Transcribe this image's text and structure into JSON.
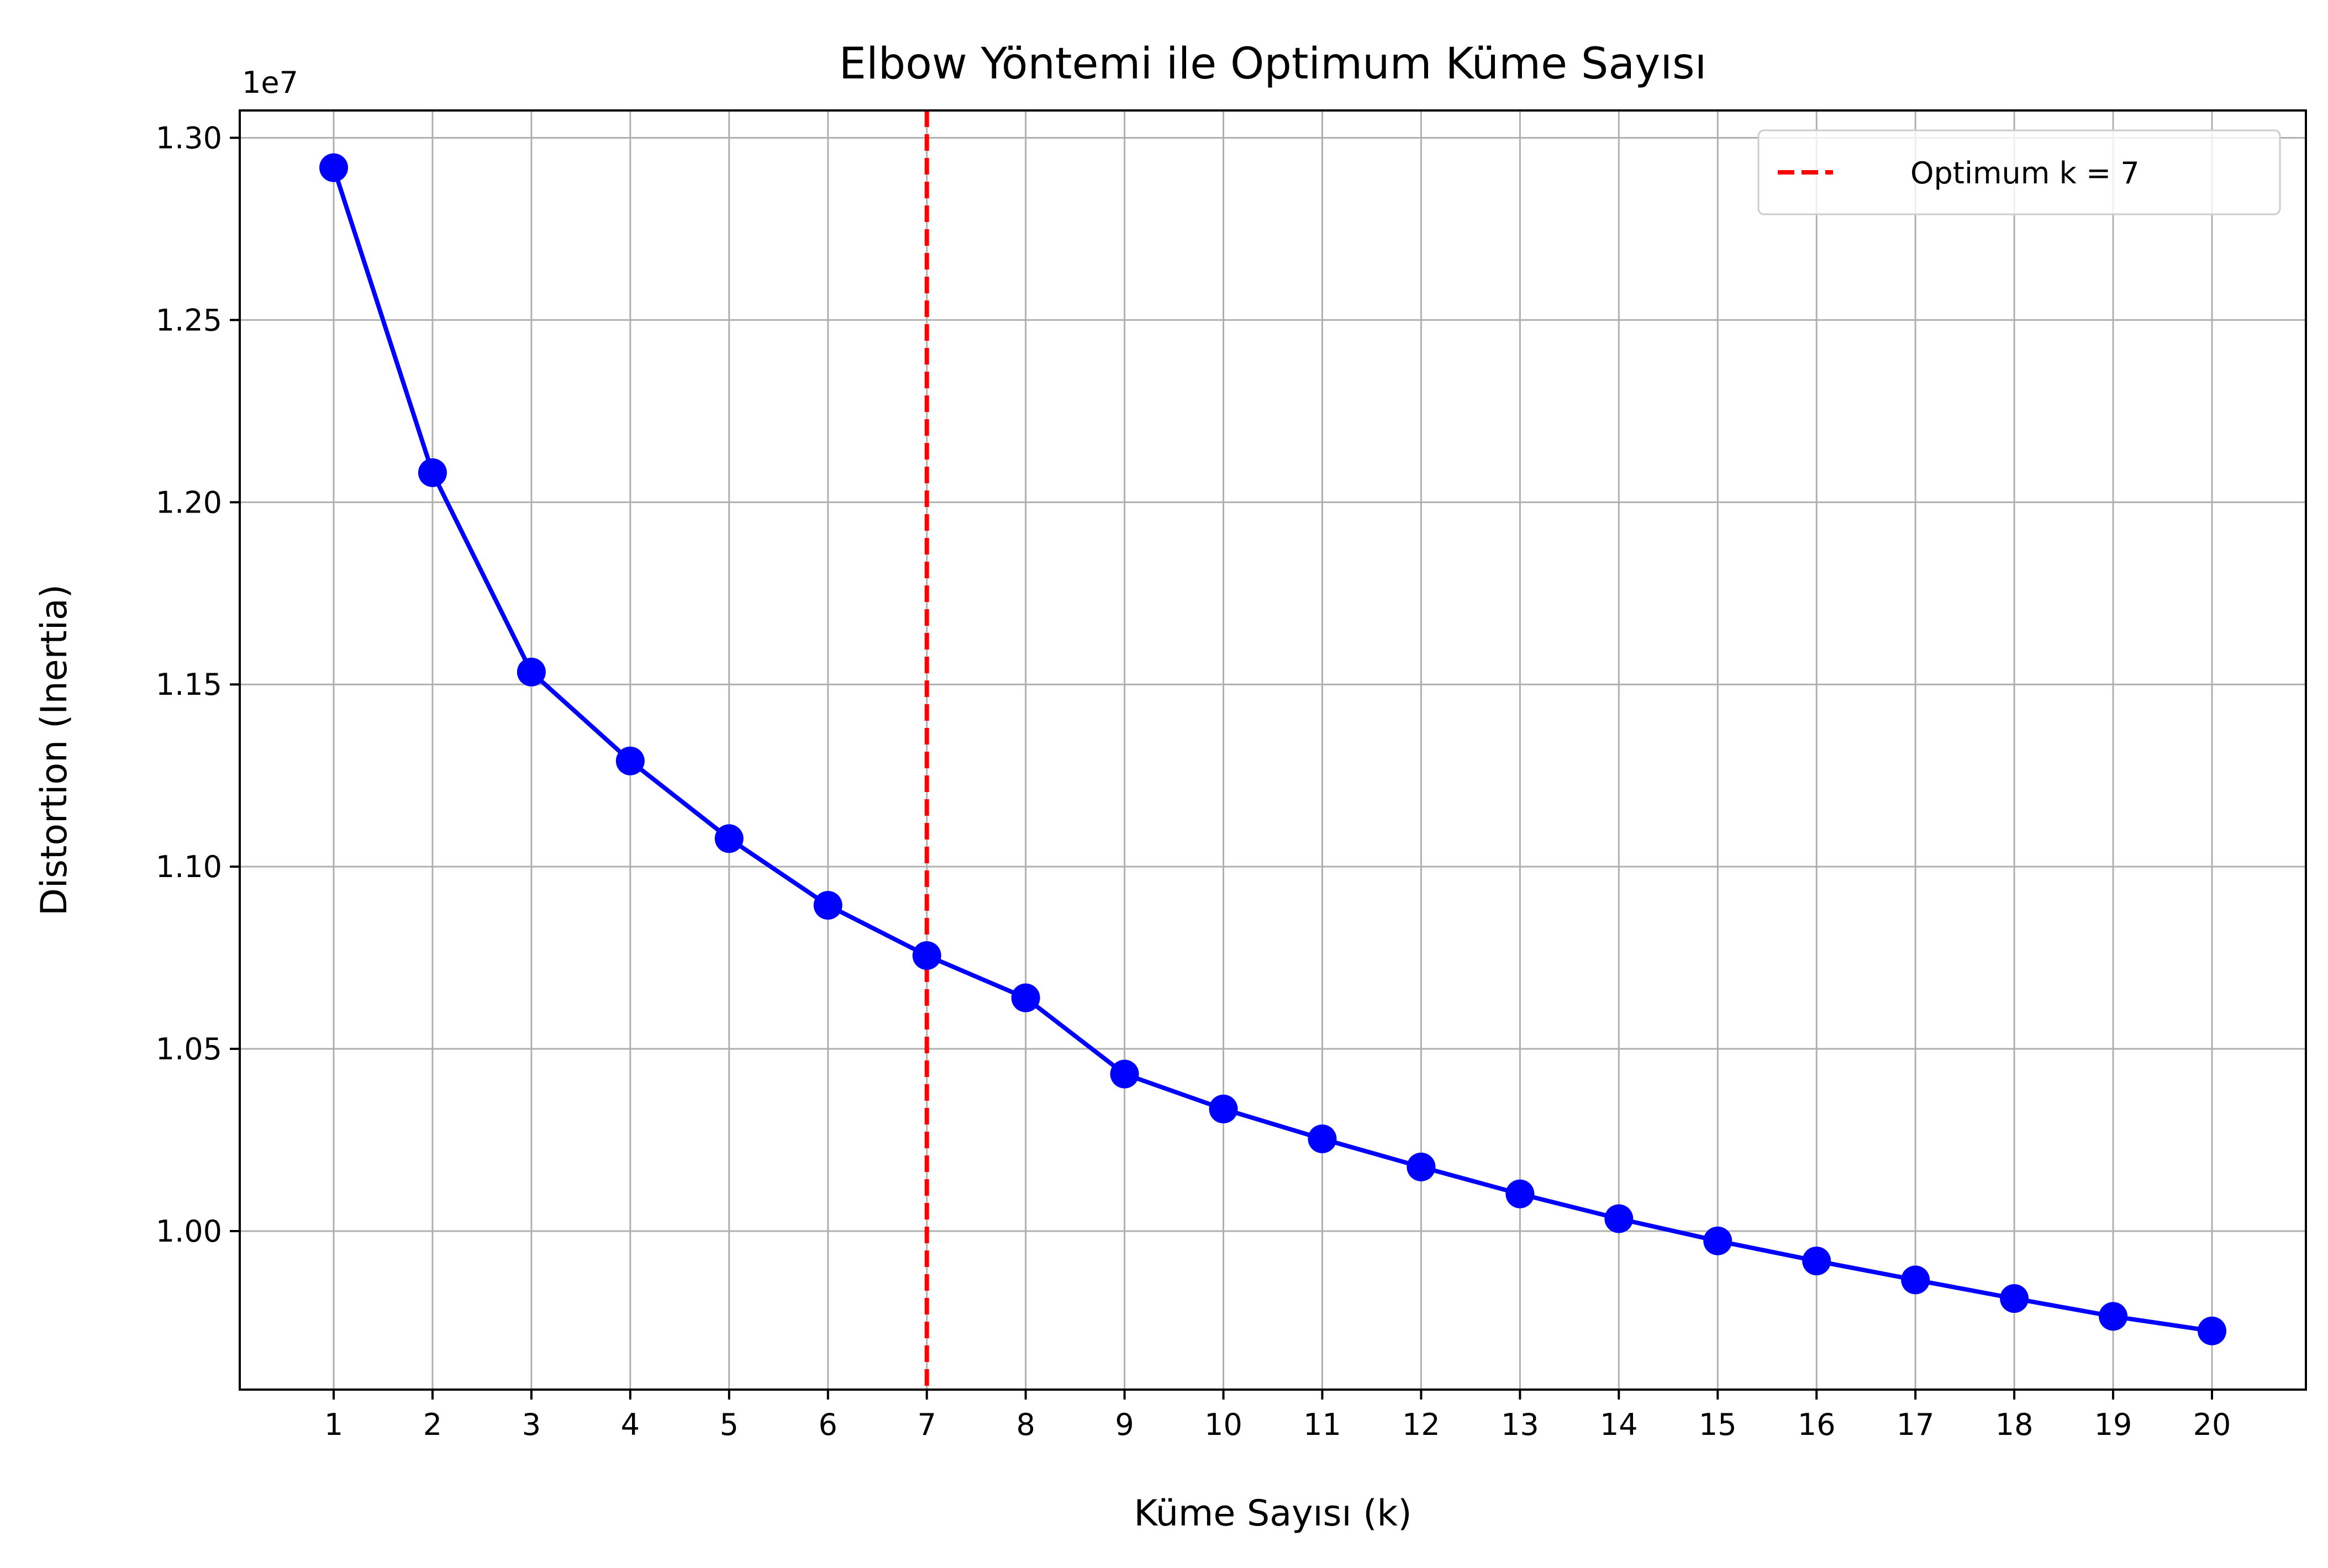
{
  "chart_data": {
    "type": "line",
    "title": "Elbow Yöntemi ile Optimum Küme Sayısı",
    "xlabel": "Küme Sayısı (k)",
    "ylabel": "Distortion (Inertia)",
    "y_offset_label": "1e7",
    "x": [
      1,
      2,
      3,
      4,
      5,
      6,
      7,
      8,
      9,
      10,
      11,
      12,
      13,
      14,
      15,
      16,
      17,
      18,
      19,
      20
    ],
    "x_tick_labels": [
      "1",
      "2",
      "3",
      "4",
      "5",
      "6",
      "7",
      "8",
      "9",
      "10",
      "11",
      "12",
      "13",
      "14",
      "15",
      "16",
      "17",
      "18",
      "19",
      "20"
    ],
    "xlim": [
      0.05,
      20.95
    ],
    "y_scale": 10000000,
    "y_ticks": [
      1.0,
      1.05,
      1.1,
      1.15,
      1.2,
      1.25,
      1.3
    ],
    "y_tick_labels": [
      "1.00",
      "1.05",
      "1.10",
      "1.15",
      "1.20",
      "1.25",
      "1.30"
    ],
    "ylim": [
      0.9565,
      1.3075
    ],
    "series": [
      {
        "values": [
          1.2918,
          1.2081,
          1.1534,
          1.129,
          1.1077,
          1.0894,
          1.0756,
          1.064,
          1.0431,
          1.0335,
          1.0253,
          1.0176,
          1.0102,
          1.0034,
          0.9973,
          0.9918,
          0.9866,
          0.9815,
          0.9766,
          0.9726
        ],
        "color": "#0000ff",
        "marker": "circle"
      }
    ],
    "reference_line": {
      "x": 7,
      "label": "Optimum k = 7",
      "color": "#ff0000",
      "style": "dashed"
    },
    "grid": true,
    "legend_position": "top-right"
  }
}
